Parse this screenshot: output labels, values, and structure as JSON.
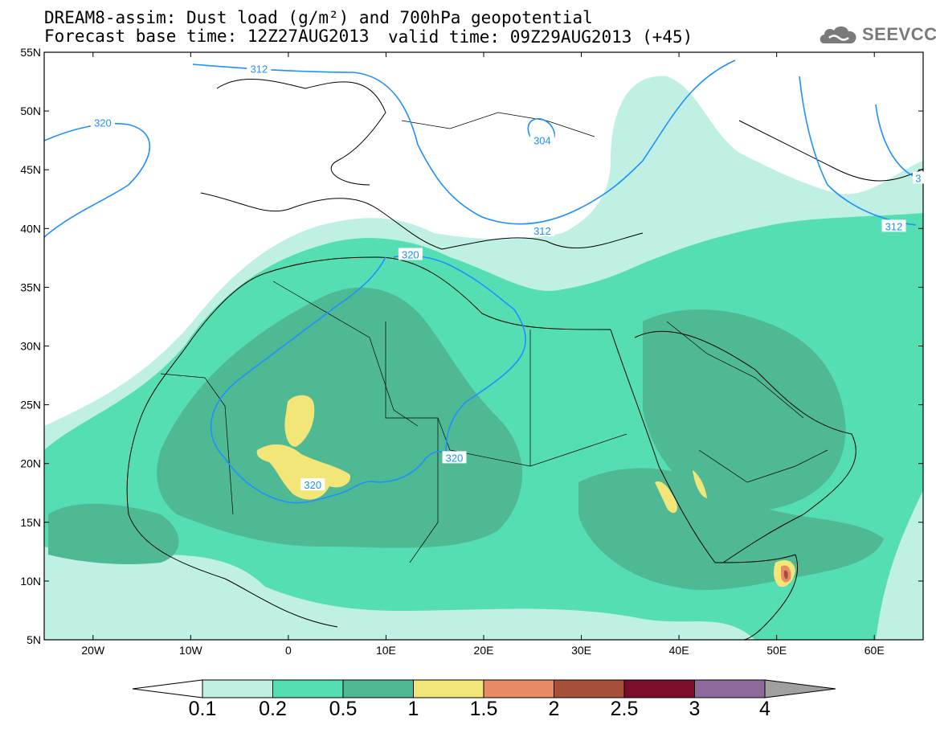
{
  "header": {
    "line1": "DREAM8-assim: Dust load (g/m²) and 700hPa geopotential",
    "line2": "Forecast base time: 12Z27AUG2013",
    "valid": "valid time: 09Z29AUG2013 (+45)"
  },
  "logo": {
    "text": "SEEVCCC",
    "icon": "cloud-logo-icon",
    "color": "#7a7a7a"
  },
  "axes": {
    "lat_labels": [
      "55N",
      "50N",
      "45N",
      "40N",
      "35N",
      "30N",
      "25N",
      "20N",
      "15N",
      "10N",
      "5N"
    ],
    "lat_values": [
      55,
      50,
      45,
      40,
      35,
      30,
      25,
      20,
      15,
      10,
      5
    ],
    "lon_labels": [
      "20W",
      "10W",
      "0",
      "10E",
      "20E",
      "30E",
      "40E",
      "50E",
      "60E"
    ],
    "lon_values": [
      -20,
      -10,
      0,
      10,
      20,
      30,
      40,
      50,
      60
    ],
    "lon_range": [
      -25,
      65
    ],
    "lat_range": [
      5,
      55
    ]
  },
  "contours": {
    "color": "#1e90ff",
    "labels": [
      {
        "text": "312",
        "lon": -3,
        "lat": 53.6
      },
      {
        "text": "320",
        "lon": -19,
        "lat": 49
      },
      {
        "text": "304",
        "lon": 26,
        "lat": 47.5
      },
      {
        "text": "312",
        "lon": 26,
        "lat": 39.8
      },
      {
        "text": "320",
        "lon": 12.5,
        "lat": 37.8
      },
      {
        "text": "320",
        "lon": 17,
        "lat": 20.5
      },
      {
        "text": "320",
        "lon": 2.5,
        "lat": 18.2
      },
      {
        "text": "312",
        "lon": 62,
        "lat": 40.2
      },
      {
        "text": "3",
        "lon": 64.5,
        "lat": 44.3
      }
    ]
  },
  "colorbar": {
    "labels": [
      "0.1",
      "0.2",
      "0.5",
      "1",
      "1.5",
      "2",
      "2.5",
      "3",
      "4"
    ],
    "colors": [
      "#bff0e3",
      "#55ddb4",
      "#4fb994",
      "#f2e679",
      "#e98c65",
      "#a64f3b",
      "#7a0d2a",
      "#8e6a9c"
    ],
    "under_color": "#ffffff",
    "over_color": "#a0a0a0"
  },
  "dust_colors": {
    "light": "#bff0e3",
    "mid": "#55ddb4",
    "dark": "#4fb994",
    "yellow": "#f2e679",
    "orange": "#e98c65",
    "brown": "#a64f3b"
  }
}
